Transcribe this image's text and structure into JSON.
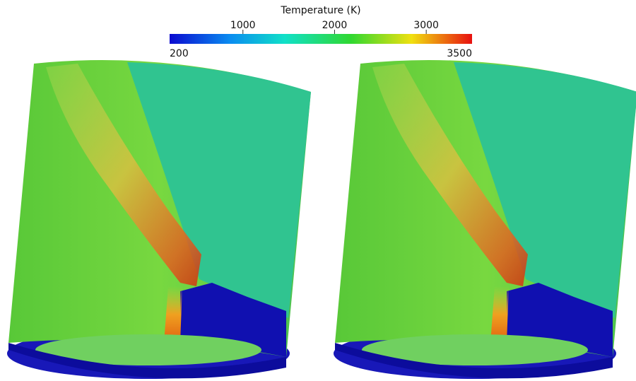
{
  "colorbar": {
    "title": "Temperature (K)",
    "min": 200,
    "max": 3500,
    "ticks": [
      1000,
      2000,
      3000
    ]
  }
}
